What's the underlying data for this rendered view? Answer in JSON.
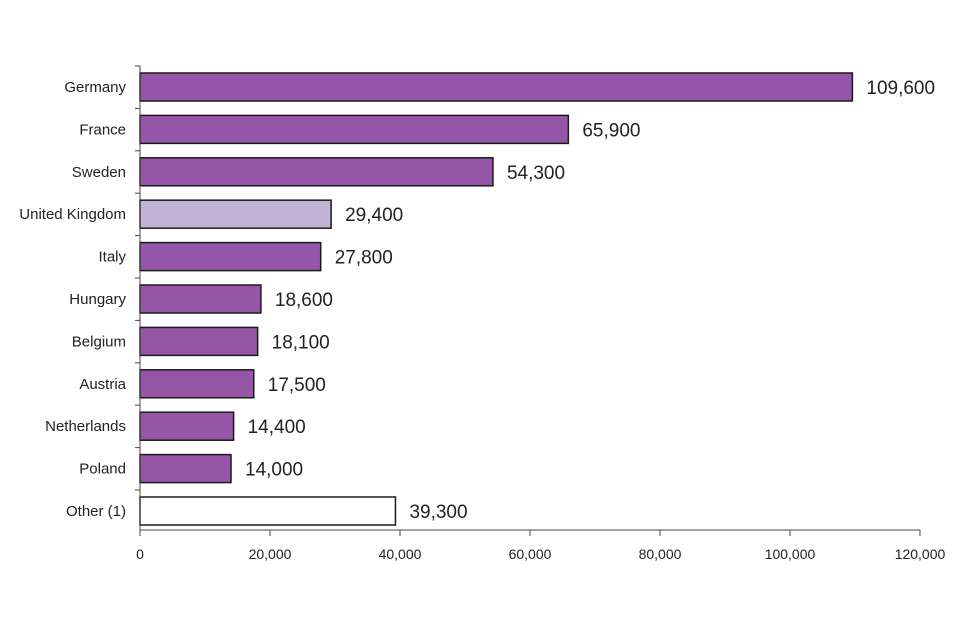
{
  "chart_data": {
    "type": "bar",
    "orientation": "horizontal",
    "categories": [
      "Germany",
      "France",
      "Sweden",
      "United Kingdom",
      "Italy",
      "Hungary",
      "Belgium",
      "Austria",
      "Netherlands",
      "Poland",
      "Other (1)"
    ],
    "values": [
      109600,
      65900,
      54300,
      29400,
      27800,
      18600,
      18100,
      17500,
      14400,
      14000,
      39300
    ],
    "value_labels": [
      "109,600",
      "65,900",
      "54,300",
      "29,400",
      "27,800",
      "18,600",
      "18,100",
      "17,500",
      "14,400",
      "14,000",
      "39,300"
    ],
    "bar_colors": [
      "#9556a8",
      "#9556a8",
      "#9556a8",
      "#c2b2d6",
      "#9556a8",
      "#9556a8",
      "#9556a8",
      "#9556a8",
      "#9556a8",
      "#9556a8",
      "#ffffff"
    ],
    "xlim": [
      0,
      120000
    ],
    "xticks": [
      0,
      20000,
      40000,
      60000,
      80000,
      100000,
      120000
    ],
    "xtick_labels": [
      "0",
      "20,000",
      "40,000",
      "60,000",
      "80,000",
      "100,000",
      "120,000"
    ],
    "title": "",
    "xlabel": "",
    "ylabel": "",
    "grid": false,
    "legend": "none"
  }
}
